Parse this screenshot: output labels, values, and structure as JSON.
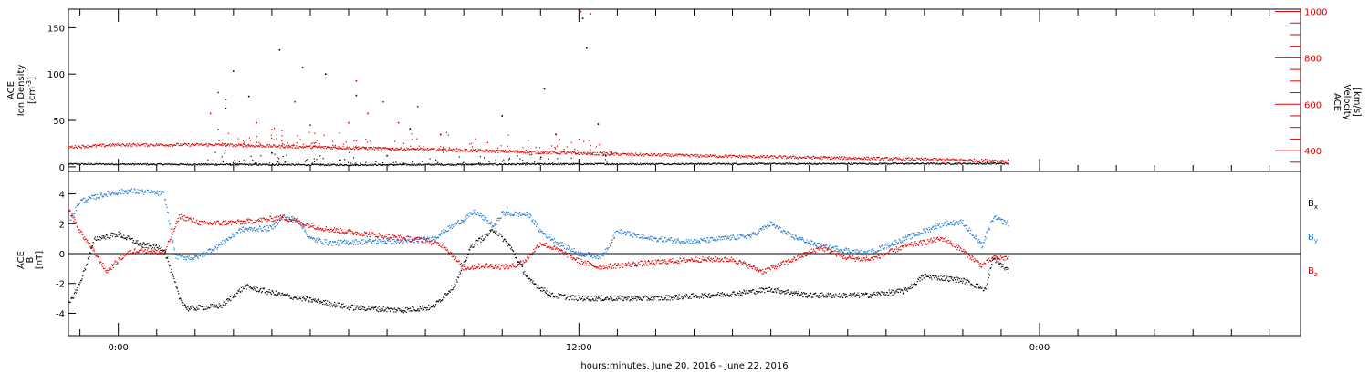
{
  "figure": {
    "xlabel": "hours:minutes, June 20, 2016 - June 22, 2016",
    "x_tick_labels": [
      "0:00",
      "12:00",
      "0:00"
    ]
  },
  "chart_data": [
    {
      "type": "scatter",
      "panel": "top",
      "x_unit": "hours since 2016-06-20 00:00",
      "xlim": [
        -1.3,
        30.8
      ],
      "data_x_range": [
        -1.3,
        23.2
      ],
      "left_axis": {
        "label_line1": "ACE",
        "label_line2": "Ion Density",
        "label_units": "[cm",
        "label_units_sup": "-3",
        "label_units_close": "]",
        "ylim": [
          -5,
          170
        ],
        "ticks": [
          0,
          50,
          100,
          150
        ]
      },
      "right_axis": {
        "label_line1": "ACE",
        "label_line2": "Velocity",
        "label_units": "[km/s]",
        "ylim": [
          310,
          1010
        ],
        "ticks": [
          400,
          600,
          800,
          1000
        ],
        "color": "#e00000"
      },
      "series": [
        {
          "name": "Ion Density",
          "color": "#000000",
          "axis": "left",
          "baseline": [
            [
              -1.3,
              3
            ],
            [
              6,
              2
            ],
            [
              12,
              3
            ],
            [
              23.2,
              3.5
            ]
          ],
          "spikes": [
            [
              2.6,
              40
            ],
            [
              2.8,
              63
            ],
            [
              3.0,
              103
            ],
            [
              3.4,
              76
            ],
            [
              4.0,
              15
            ],
            [
              4.2,
              126
            ],
            [
              4.8,
              107
            ],
            [
              5.4,
              100
            ],
            [
              6.2,
              77
            ],
            [
              7.0,
              12
            ],
            [
              7.6,
              41
            ],
            [
              10.0,
              55
            ],
            [
              11.1,
              84
            ],
            [
              11.4,
              35
            ],
            [
              12.1,
              160
            ],
            [
              12.2,
              128
            ],
            [
              12.5,
              46
            ],
            [
              12.7,
              12
            ]
          ]
        },
        {
          "name": "Velocity",
          "color": "#e00000",
          "axis": "right",
          "baseline": [
            [
              -1.3,
              415
            ],
            [
              0,
              425
            ],
            [
              2.5,
              425
            ],
            [
              5,
              415
            ],
            [
              8,
              405
            ],
            [
              10.5,
              395
            ],
            [
              12.8,
              385
            ],
            [
              16,
              375
            ],
            [
              20,
              365
            ],
            [
              23.2,
              355
            ]
          ],
          "spikes": [
            [
              2.4,
              560
            ],
            [
              2.6,
              650
            ],
            [
              2.8,
              620
            ],
            [
              3.6,
              520
            ],
            [
              4.0,
              490
            ],
            [
              4.6,
              610
            ],
            [
              5.0,
              510
            ],
            [
              6.0,
              520
            ],
            [
              6.2,
              700
            ],
            [
              6.5,
              560
            ],
            [
              6.9,
              610
            ],
            [
              7.3,
              520
            ],
            [
              7.8,
              590
            ],
            [
              8.4,
              470
            ],
            [
              9.3,
              450
            ],
            [
              12.05,
              1000
            ],
            [
              12.3,
              990
            ]
          ]
        }
      ]
    },
    {
      "type": "scatter",
      "panel": "bottom",
      "x_unit": "hours since 2016-06-20 00:00",
      "xlim": [
        -1.3,
        30.8
      ],
      "data_x_range": [
        -1.3,
        23.2
      ],
      "left_axis": {
        "label_line1": "ACE",
        "label_line2": "B",
        "label_units": "[nT]",
        "ylim": [
          -5.5,
          5.5
        ],
        "ticks": [
          -4,
          -2,
          0,
          2,
          4
        ]
      },
      "zero_line": true,
      "legend": [
        {
          "label": "B",
          "sub": "x",
          "color": "#000000"
        },
        {
          "label": "B",
          "sub": "y",
          "color": "#1e78d0"
        },
        {
          "label": "B",
          "sub": "z",
          "color": "#e00000"
        }
      ],
      "series": [
        {
          "name": "Bx",
          "color": "#000000",
          "values": [
            [
              -1.3,
              -3.5
            ],
            [
              -1.0,
              -2.0
            ],
            [
              -0.6,
              1.0
            ],
            [
              0,
              1.3
            ],
            [
              0.6,
              0.6
            ],
            [
              1.2,
              0.3
            ],
            [
              1.6,
              -3.0
            ],
            [
              1.8,
              -3.7
            ],
            [
              2.7,
              -3.5
            ],
            [
              3.3,
              -2.2
            ],
            [
              4.3,
              -2.8
            ],
            [
              5.2,
              -3.2
            ],
            [
              6.0,
              -3.6
            ],
            [
              7.4,
              -3.8
            ],
            [
              8.2,
              -3.6
            ],
            [
              8.8,
              -2.0
            ],
            [
              9.2,
              0.5
            ],
            [
              9.8,
              1.6
            ],
            [
              10.2,
              0.5
            ],
            [
              10.7,
              -1.8
            ],
            [
              11.3,
              -2.8
            ],
            [
              12.0,
              -3.0
            ],
            [
              13.0,
              -3.0
            ],
            [
              14.0,
              -3.0
            ],
            [
              16.0,
              -2.7
            ],
            [
              17.0,
              -2.4
            ],
            [
              18.0,
              -2.8
            ],
            [
              19.5,
              -2.8
            ],
            [
              20.5,
              -2.5
            ],
            [
              21.0,
              -1.5
            ],
            [
              22.0,
              -1.8
            ],
            [
              22.6,
              -2.4
            ],
            [
              22.8,
              -0.3
            ],
            [
              23.2,
              -1.2
            ]
          ]
        },
        {
          "name": "By",
          "color": "#1e78d0",
          "values": [
            [
              -1.3,
              2.0
            ],
            [
              -1.0,
              3.5
            ],
            [
              -0.3,
              4.0
            ],
            [
              0.3,
              4.2
            ],
            [
              1.2,
              4.0
            ],
            [
              1.5,
              -0.2
            ],
            [
              2.0,
              -0.3
            ],
            [
              2.6,
              0.5
            ],
            [
              3.2,
              1.6
            ],
            [
              4.0,
              1.7
            ],
            [
              4.3,
              2.5
            ],
            [
              4.7,
              2.2
            ],
            [
              5.0,
              1.0
            ],
            [
              5.5,
              0.7
            ],
            [
              6.5,
              0.8
            ],
            [
              7.5,
              0.8
            ],
            [
              8.2,
              1.0
            ],
            [
              9.3,
              2.8
            ],
            [
              9.8,
              1.8
            ],
            [
              10.0,
              2.7
            ],
            [
              10.7,
              2.6
            ],
            [
              11.0,
              1.5
            ],
            [
              11.4,
              0.8
            ],
            [
              12.0,
              0.0
            ],
            [
              12.6,
              -0.2
            ],
            [
              13.0,
              1.5
            ],
            [
              13.8,
              1.0
            ],
            [
              15.0,
              0.8
            ],
            [
              16.5,
              1.2
            ],
            [
              17.0,
              2.0
            ],
            [
              17.5,
              1.2
            ],
            [
              18.3,
              0.5
            ],
            [
              19.5,
              0.0
            ],
            [
              20.5,
              1.0
            ],
            [
              21.5,
              2.0
            ],
            [
              22.0,
              2.1
            ],
            [
              22.5,
              0.5
            ],
            [
              22.8,
              2.4
            ],
            [
              23.2,
              2.0
            ]
          ]
        },
        {
          "name": "Bz",
          "color": "#e00000",
          "values": [
            [
              -1.3,
              3.0
            ],
            [
              -1.0,
              1.5
            ],
            [
              -0.6,
              0.0
            ],
            [
              -0.3,
              -1.2
            ],
            [
              0.2,
              0.0
            ],
            [
              0.6,
              0.3
            ],
            [
              1.2,
              0.0
            ],
            [
              1.6,
              2.5
            ],
            [
              2.2,
              2.0
            ],
            [
              3.2,
              2.1
            ],
            [
              4.3,
              2.4
            ],
            [
              4.8,
              2.0
            ],
            [
              5.5,
              1.6
            ],
            [
              6.5,
              1.3
            ],
            [
              7.5,
              1.0
            ],
            [
              8.0,
              0.9
            ],
            [
              8.5,
              0.5
            ],
            [
              9.0,
              -1.0
            ],
            [
              9.5,
              -0.8
            ],
            [
              10.2,
              -0.9
            ],
            [
              10.6,
              -0.5
            ],
            [
              11.0,
              0.7
            ],
            [
              11.5,
              0.2
            ],
            [
              12.0,
              -0.5
            ],
            [
              12.5,
              -0.9
            ],
            [
              13.5,
              -0.7
            ],
            [
              15.0,
              -0.4
            ],
            [
              16.0,
              -0.4
            ],
            [
              16.8,
              -1.2
            ],
            [
              17.5,
              -0.5
            ],
            [
              18.3,
              0.4
            ],
            [
              19.0,
              -0.3
            ],
            [
              19.6,
              -0.4
            ],
            [
              20.0,
              0.0
            ],
            [
              20.5,
              0.5
            ],
            [
              21.5,
              1.0
            ],
            [
              22.0,
              0.2
            ],
            [
              22.5,
              -0.8
            ],
            [
              22.8,
              -0.3
            ],
            [
              23.2,
              -0.3
            ]
          ]
        }
      ]
    }
  ]
}
